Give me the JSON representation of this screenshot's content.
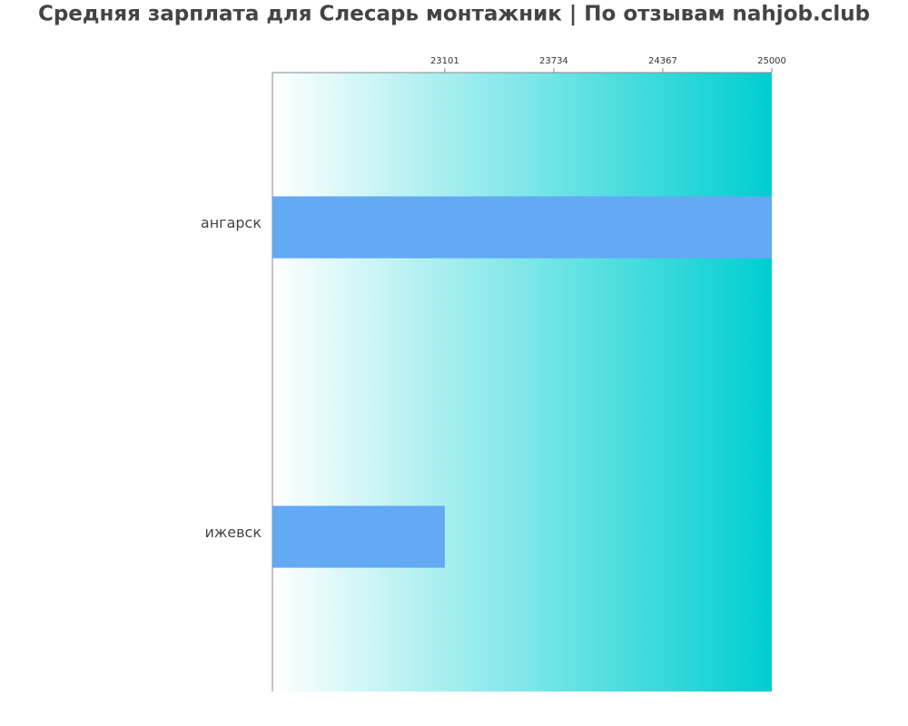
{
  "chart_data": {
    "type": "barh",
    "title": "Средняя зарплата для Слесарь монтажник | По отзывам nahjob.club",
    "categories": [
      "ангарск",
      "ижевск"
    ],
    "values": [
      25000,
      23101
    ],
    "color": "#63a9f4",
    "xlim": [
      22100,
      25000
    ],
    "xticks": [
      23101,
      23734,
      24367,
      25000
    ]
  }
}
